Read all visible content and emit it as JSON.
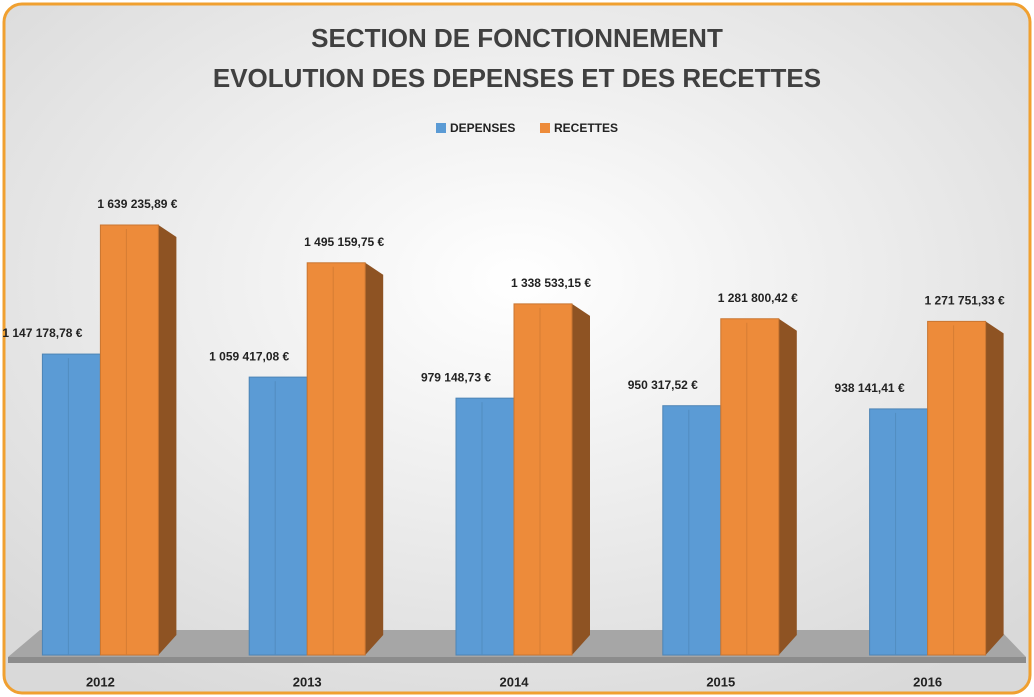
{
  "chart_data": {
    "type": "bar",
    "title": "SECTION DE FONCTIONNEMENT",
    "subtitle": "EVOLUTION DES DEPENSES ET DES RECETTES",
    "categories": [
      "2012",
      "2013",
      "2014",
      "2015",
      "2016"
    ],
    "series": [
      {
        "name": "DEPENSES",
        "color": "#5b9bd5",
        "values": [
          1147178.78,
          1059417.08,
          979148.73,
          950317.52,
          938141.41
        ],
        "value_labels": [
          "1 147 178,78 €",
          "1 059 417,08 €",
          "979 148,73 €",
          "950 317,52 €",
          "938 141,41 €"
        ]
      },
      {
        "name": "RECETTES",
        "color": "#ed8b3a",
        "values": [
          1639235.89,
          1495159.75,
          1338533.15,
          1281800.42,
          1271751.33
        ],
        "value_labels": [
          "1 639 235,89 €",
          "1 495 159,75 €",
          "1 338 533,15 €",
          "1 281 800,42 €",
          "1 271 751,33 €"
        ]
      }
    ],
    "legend": "top"
  }
}
